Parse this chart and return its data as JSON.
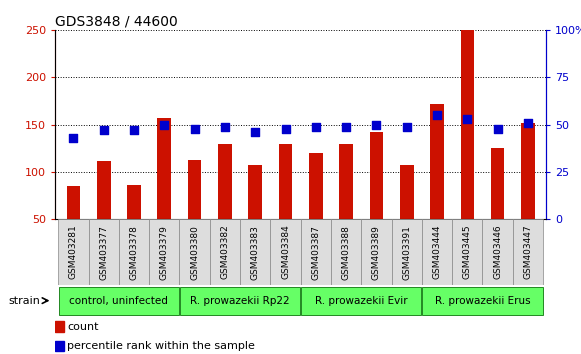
{
  "title": "GDS3848 / 44600",
  "samples": [
    "GSM403281",
    "GSM403377",
    "GSM403378",
    "GSM403379",
    "GSM403380",
    "GSM403382",
    "GSM403383",
    "GSM403384",
    "GSM403387",
    "GSM403388",
    "GSM403389",
    "GSM403391",
    "GSM403444",
    "GSM403445",
    "GSM403446",
    "GSM403447"
  ],
  "counts": [
    85,
    112,
    86,
    157,
    113,
    130,
    108,
    130,
    120,
    130,
    142,
    108,
    172,
    250,
    126,
    152
  ],
  "percentile_ranks_left_scale": [
    115,
    125,
    125,
    133,
    128,
    130,
    122,
    128,
    130,
    130,
    133,
    130,
    143,
    140,
    128,
    135
  ],
  "percentile_ranks_right": [
    43,
    47,
    47,
    50,
    48,
    49,
    46,
    48,
    49,
    49,
    50,
    49,
    55,
    53,
    48,
    51
  ],
  "group_labels": [
    "control, uninfected",
    "R. prowazekii Rp22",
    "R. prowazekii Evir",
    "R. prowazekii Erus"
  ],
  "group_ranges": [
    [
      0,
      4
    ],
    [
      4,
      8
    ],
    [
      8,
      12
    ],
    [
      12,
      16
    ]
  ],
  "group_color": "#66ff66",
  "bar_color": "#cc1100",
  "dot_color": "#0000cc",
  "left_axis_color": "#cc1100",
  "right_axis_color": "#0000cc",
  "ylim_left": [
    50,
    250
  ],
  "ylim_right": [
    0,
    100
  ],
  "left_yticks": [
    50,
    100,
    150,
    200,
    250
  ],
  "right_yticks": [
    0,
    25,
    50,
    75,
    100
  ],
  "background_color": "#ffffff",
  "plot_bg_color": "#ffffff",
  "title_fontsize": 10,
  "bar_width": 0.45,
  "dot_size": 30,
  "legend_count": "count",
  "legend_pct": "percentile rank within the sample",
  "strain_label": "strain"
}
